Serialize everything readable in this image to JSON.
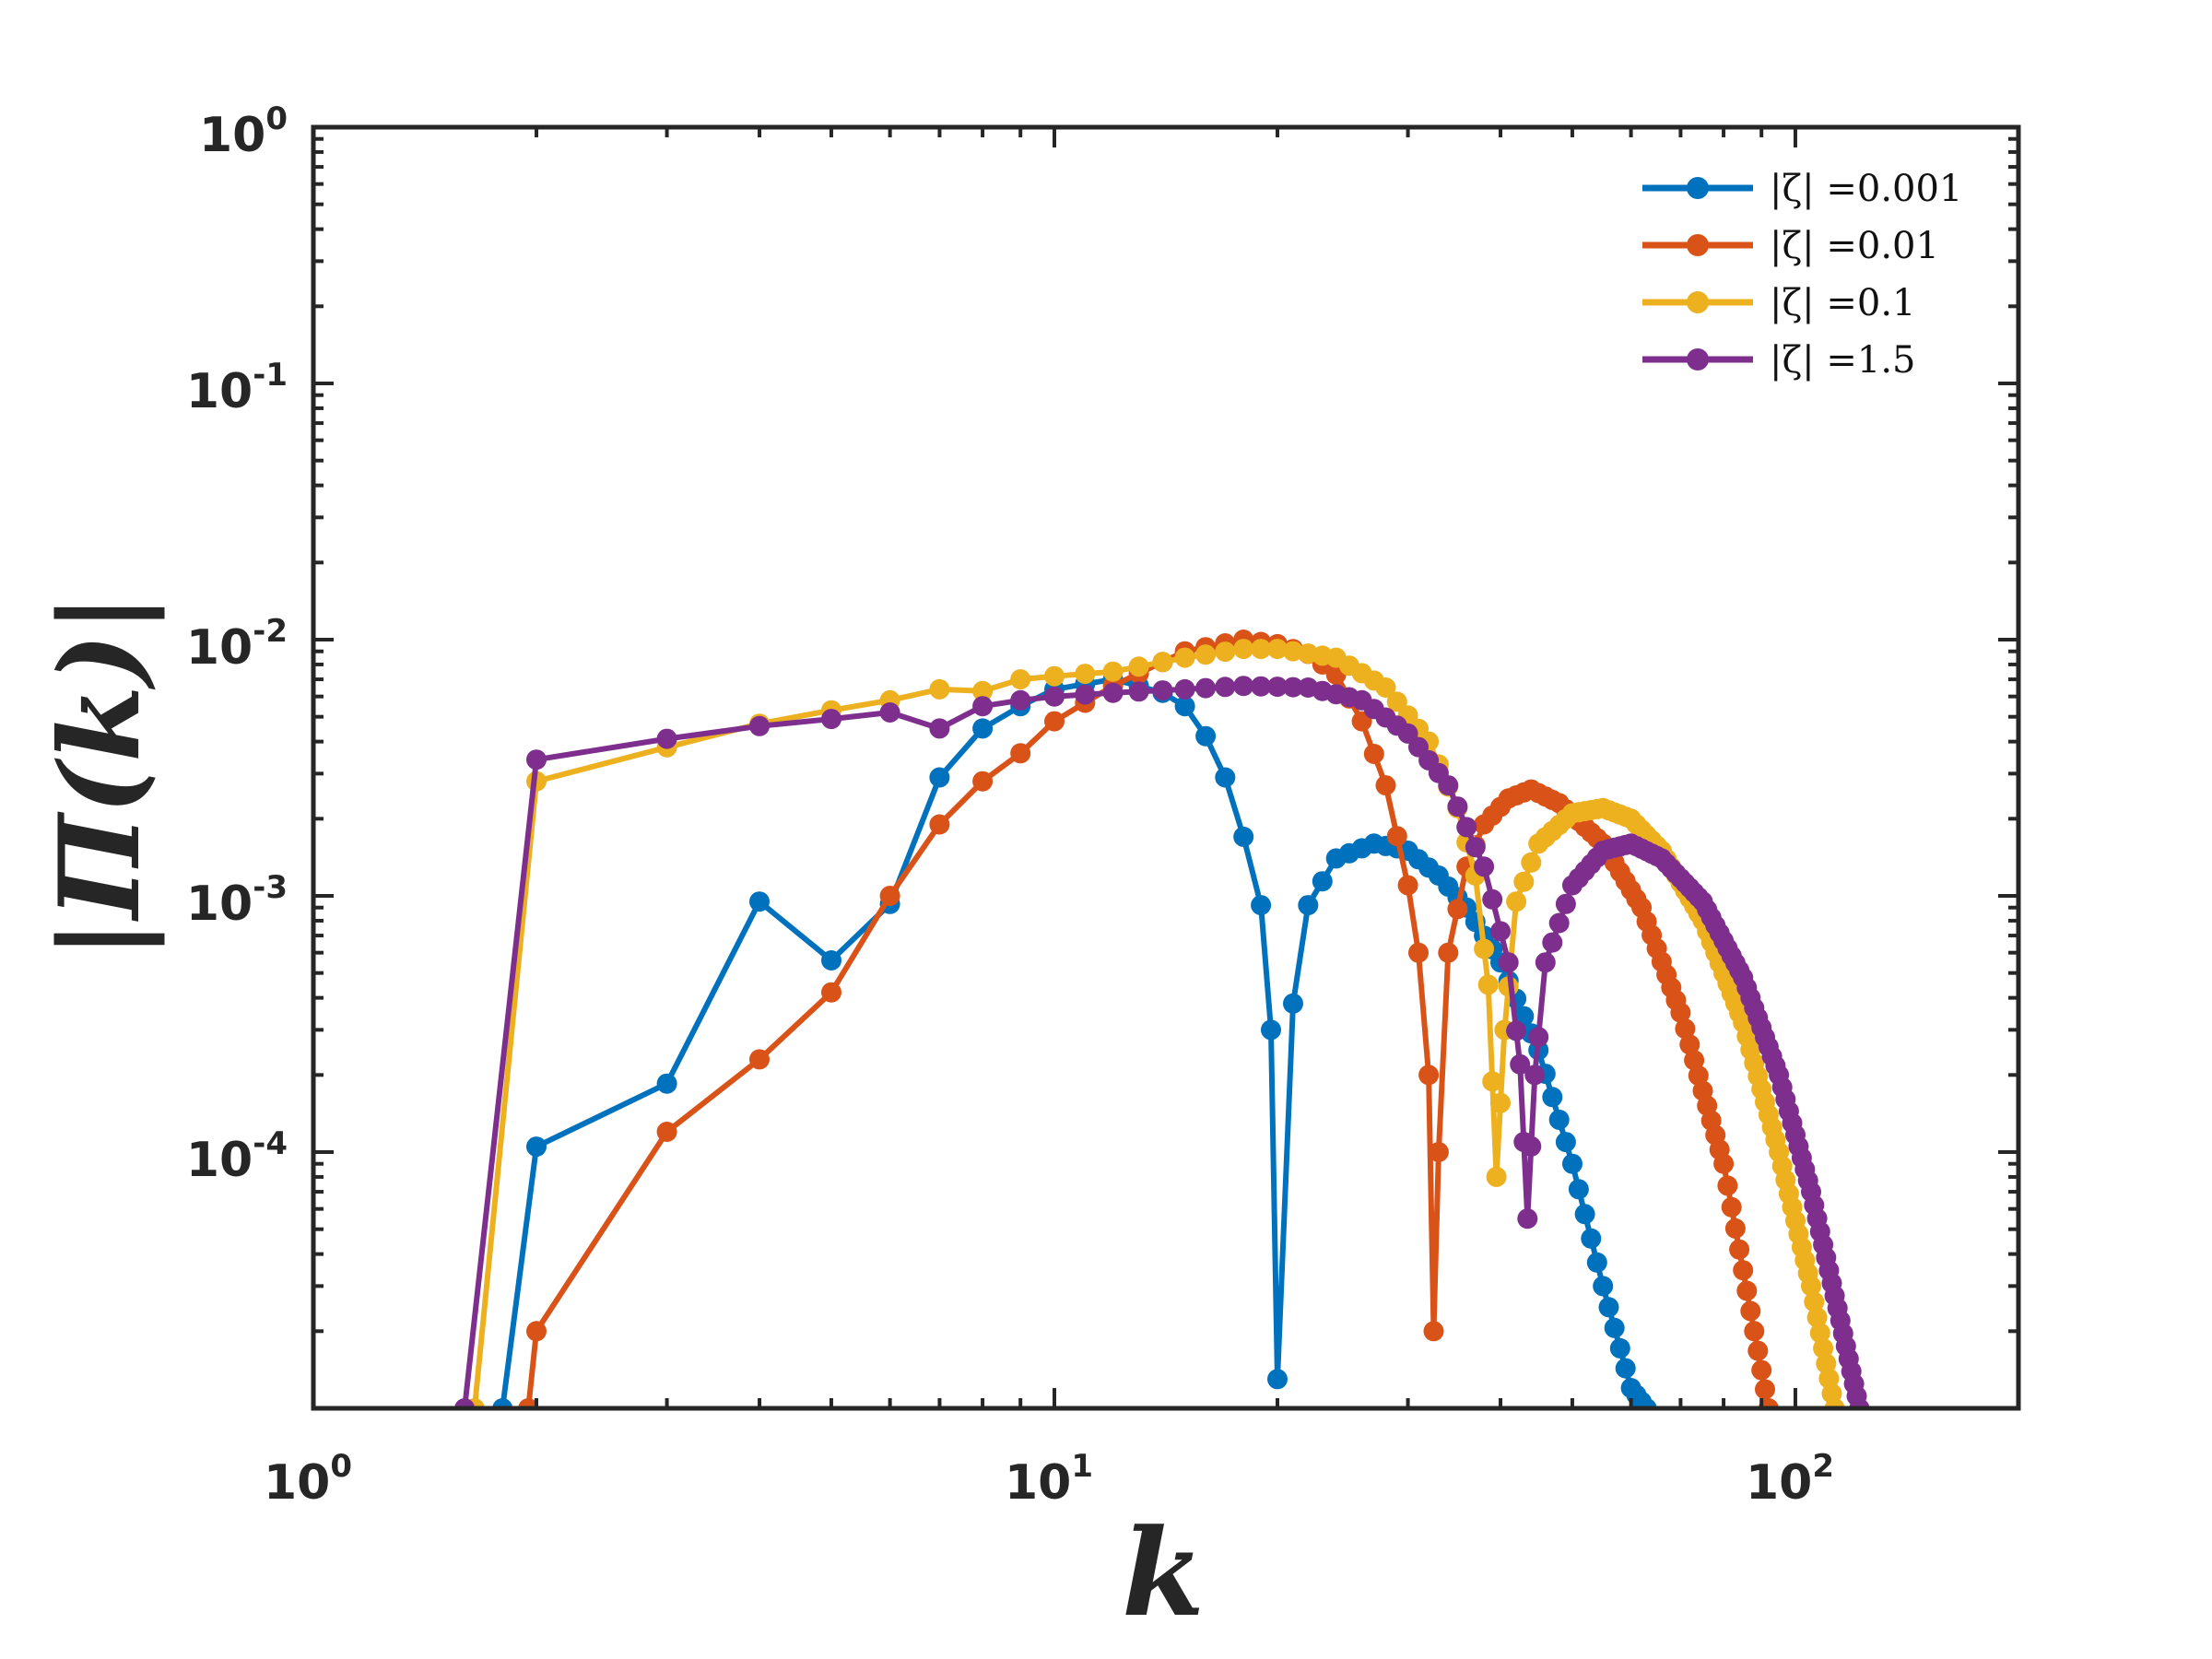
{
  "chart_data": {
    "type": "line",
    "title": "",
    "xlabel": "k",
    "ylabel": "|Π(k)|",
    "xscale": "log",
    "yscale": "log",
    "xlim": [
      1,
      200
    ],
    "ylim": [
      1e-05,
      1
    ],
    "x_ticks": [
      {
        "base": "10",
        "exp": "0",
        "value": 1
      },
      {
        "base": "10",
        "exp": "1",
        "value": 10
      },
      {
        "base": "10",
        "exp": "2",
        "value": 100
      }
    ],
    "y_ticks": [
      {
        "base": "10",
        "exp": "0",
        "value": 1
      },
      {
        "base": "10",
        "exp": "-1",
        "value": 0.1
      },
      {
        "base": "10",
        "exp": "-2",
        "value": 0.01
      },
      {
        "base": "10",
        "exp": "-3",
        "value": 0.001
      },
      {
        "base": "10",
        "exp": "-4",
        "value": 0.0001
      }
    ],
    "legend_position": "top-right",
    "grid": false,
    "series": [
      {
        "name": "|ζ| =0.001",
        "color": "#0072BD",
        "anchors": [
          [
            1.8,
            1e-05
          ],
          [
            2,
            0.000105
          ],
          [
            3,
            0.000185
          ],
          [
            4,
            0.00095
          ],
          [
            5,
            0.00056
          ],
          [
            6,
            0.00093
          ],
          [
            7,
            0.0029
          ],
          [
            8,
            0.0045
          ],
          [
            9,
            0.0055
          ],
          [
            10,
            0.0064
          ],
          [
            12,
            0.007
          ],
          [
            13,
            0.0066
          ],
          [
            14,
            0.0062
          ],
          [
            15,
            0.0055
          ],
          [
            16,
            0.0042
          ],
          [
            17,
            0.0029
          ],
          [
            18,
            0.0017
          ],
          [
            19,
            0.00092
          ],
          [
            19.6,
            0.0003
          ],
          [
            20,
            1.3e-05
          ],
          [
            21,
            0.00038
          ],
          [
            22,
            0.00092
          ],
          [
            24,
            0.0014
          ],
          [
            27,
            0.0016
          ],
          [
            30,
            0.0015
          ],
          [
            33,
            0.0012
          ],
          [
            36,
            0.0009
          ],
          [
            40,
            0.00055
          ],
          [
            45,
            0.00025
          ],
          [
            50,
            9e-05
          ],
          [
            55,
            3e-05
          ],
          [
            60,
            1.2e-05
          ],
          [
            63,
            1e-05
          ]
        ]
      },
      {
        "name": "|ζ| =0.01",
        "color": "#D95319",
        "anchors": [
          [
            1.95,
            1e-05
          ],
          [
            2,
            2e-05
          ],
          [
            3,
            0.00012
          ],
          [
            4,
            0.00023
          ],
          [
            5,
            0.00042
          ],
          [
            6,
            0.001
          ],
          [
            7,
            0.0019
          ],
          [
            8,
            0.0028
          ],
          [
            9,
            0.0036
          ],
          [
            10,
            0.0048
          ],
          [
            12,
            0.0066
          ],
          [
            15,
            0.009
          ],
          [
            18,
            0.01
          ],
          [
            20,
            0.0096
          ],
          [
            22,
            0.0088
          ],
          [
            24,
            0.0073
          ],
          [
            26,
            0.0048
          ],
          [
            28,
            0.0027
          ],
          [
            30,
            0.0011
          ],
          [
            31,
            0.0006
          ],
          [
            32,
            0.0002
          ],
          [
            32.5,
            2e-05
          ],
          [
            33,
            0.0001
          ],
          [
            34,
            0.0006
          ],
          [
            36,
            0.0013
          ],
          [
            38,
            0.0019
          ],
          [
            41,
            0.0024
          ],
          [
            44,
            0.0026
          ],
          [
            48,
            0.0023
          ],
          [
            55,
            0.0016
          ],
          [
            62,
            0.0009
          ],
          [
            70,
            0.00035
          ],
          [
            80,
            9e-05
          ],
          [
            88,
            2e-05
          ],
          [
            92,
            1e-05
          ]
        ]
      },
      {
        "name": "|ζ| =0.1",
        "color": "#EDB120",
        "anchors": [
          [
            1.65,
            1e-05
          ],
          [
            2,
            0.0028
          ],
          [
            3,
            0.0038
          ],
          [
            4,
            0.0047
          ],
          [
            5,
            0.0053
          ],
          [
            6,
            0.0058
          ],
          [
            7,
            0.0064
          ],
          [
            8,
            0.0063
          ],
          [
            9,
            0.007
          ],
          [
            10,
            0.0072
          ],
          [
            12,
            0.0075
          ],
          [
            15,
            0.0085
          ],
          [
            18,
            0.0092
          ],
          [
            20,
            0.0092
          ],
          [
            24,
            0.0085
          ],
          [
            28,
            0.0065
          ],
          [
            32,
            0.004
          ],
          [
            35,
            0.0022
          ],
          [
            37,
            0.0012
          ],
          [
            38.5,
            0.00045
          ],
          [
            39.5,
            8e-05
          ],
          [
            40.5,
            0.0003
          ],
          [
            42,
            0.00095
          ],
          [
            45,
            0.0016
          ],
          [
            50,
            0.0021
          ],
          [
            55,
            0.0022
          ],
          [
            60,
            0.002
          ],
          [
            66,
            0.0015
          ],
          [
            75,
            0.0008
          ],
          [
            85,
            0.00032
          ],
          [
            95,
            0.0001
          ],
          [
            105,
            3e-05
          ],
          [
            113,
            1e-05
          ]
        ]
      },
      {
        "name": "|ζ| =1.5",
        "color": "#7E2F8E",
        "anchors": [
          [
            1.6,
            1e-05
          ],
          [
            2,
            0.0034
          ],
          [
            3,
            0.0041
          ],
          [
            4,
            0.0046
          ],
          [
            5,
            0.0049
          ],
          [
            6,
            0.0052
          ],
          [
            7,
            0.0045
          ],
          [
            8,
            0.0055
          ],
          [
            9,
            0.0058
          ],
          [
            10,
            0.006
          ],
          [
            12,
            0.0062
          ],
          [
            15,
            0.0064
          ],
          [
            18,
            0.0066
          ],
          [
            22,
            0.0065
          ],
          [
            26,
            0.0058
          ],
          [
            30,
            0.0043
          ],
          [
            34,
            0.0027
          ],
          [
            38,
            0.0013
          ],
          [
            41,
            0.00055
          ],
          [
            42.5,
            0.00022
          ],
          [
            43.5,
            5.5e-05
          ],
          [
            44.5,
            0.0002
          ],
          [
            46,
            0.00055
          ],
          [
            50,
            0.0011
          ],
          [
            55,
            0.0015
          ],
          [
            60,
            0.0016
          ],
          [
            66,
            0.0014
          ],
          [
            75,
            0.00095
          ],
          [
            85,
            0.00048
          ],
          [
            95,
            0.0002
          ],
          [
            105,
            7e-05
          ],
          [
            115,
            2.2e-05
          ],
          [
            122,
            1e-05
          ]
        ]
      }
    ]
  }
}
